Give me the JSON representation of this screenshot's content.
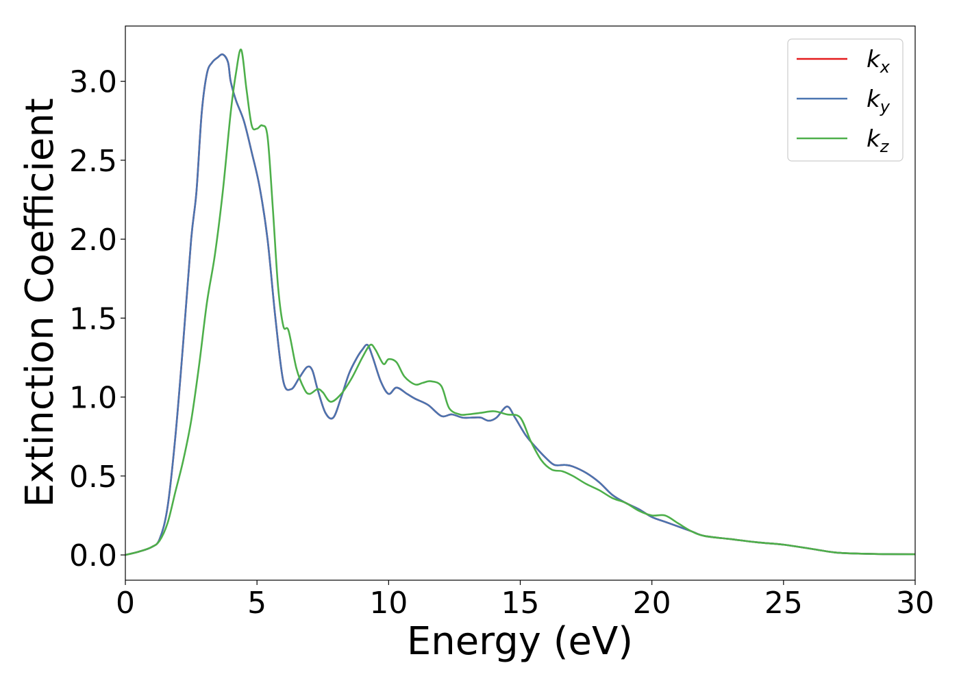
{
  "chart_data": {
    "type": "line",
    "title": "",
    "xlabel": "Energy (eV)",
    "ylabel": "Extinction Coefficient",
    "xlim": [
      0,
      30
    ],
    "ylim": [
      -0.16,
      3.35
    ],
    "xticks": [
      0,
      5,
      10,
      15,
      20,
      25,
      30
    ],
    "xtick_labels": [
      "0",
      "5",
      "10",
      "15",
      "20",
      "25",
      "30"
    ],
    "yticks": [
      0.0,
      0.5,
      1.0,
      1.5,
      2.0,
      2.5,
      3.0
    ],
    "ytick_labels": [
      "0.0",
      "0.5",
      "1.0",
      "1.5",
      "2.0",
      "2.5",
      "3.0"
    ],
    "grid": false,
    "legend_position": "top-right",
    "series": [
      {
        "name": "k",
        "subscript": "x",
        "color": "#e41a1c",
        "x": [
          0,
          0.5,
          1.0,
          1.3,
          1.6,
          1.9,
          2.2,
          2.5,
          2.7,
          2.9,
          3.1,
          3.3,
          3.5,
          3.7,
          3.9,
          4.0,
          4.2,
          4.5,
          4.8,
          5.1,
          5.4,
          5.7,
          6.0,
          6.3,
          6.6,
          6.9,
          7.1,
          7.3,
          7.6,
          7.9,
          8.2,
          8.5,
          8.8,
          9.0,
          9.2,
          9.4,
          9.7,
          10.0,
          10.3,
          10.7,
          11.0,
          11.5,
          12.0,
          12.4,
          12.8,
          13.2,
          13.5,
          13.8,
          14.1,
          14.5,
          14.8,
          15.2,
          15.6,
          16.0,
          16.3,
          16.7,
          17.0,
          17.5,
          18.0,
          18.5,
          19.0,
          19.5,
          20.0,
          20.5,
          21.0,
          21.5,
          22.0,
          23.0,
          24.0,
          25.0,
          26.0,
          27.0,
          28.0,
          29.0,
          30.0
        ],
        "values": [
          0.0,
          0.02,
          0.05,
          0.1,
          0.3,
          0.75,
          1.35,
          2.0,
          2.3,
          2.8,
          3.05,
          3.12,
          3.15,
          3.17,
          3.12,
          3.0,
          2.88,
          2.75,
          2.55,
          2.33,
          2.0,
          1.5,
          1.1,
          1.05,
          1.12,
          1.19,
          1.17,
          1.05,
          0.9,
          0.87,
          1.0,
          1.15,
          1.25,
          1.3,
          1.33,
          1.25,
          1.1,
          1.02,
          1.06,
          1.02,
          0.99,
          0.95,
          0.88,
          0.89,
          0.87,
          0.87,
          0.87,
          0.85,
          0.87,
          0.94,
          0.87,
          0.76,
          0.68,
          0.61,
          0.57,
          0.57,
          0.56,
          0.52,
          0.46,
          0.38,
          0.33,
          0.29,
          0.24,
          0.21,
          0.18,
          0.15,
          0.12,
          0.1,
          0.08,
          0.065,
          0.04,
          0.015,
          0.008,
          0.005,
          0.004
        ]
      },
      {
        "name": "k",
        "subscript": "y",
        "color": "#4a74b0",
        "x": [
          0,
          0.5,
          1.0,
          1.3,
          1.6,
          1.9,
          2.2,
          2.5,
          2.7,
          2.9,
          3.1,
          3.3,
          3.5,
          3.7,
          3.9,
          4.0,
          4.2,
          4.5,
          4.8,
          5.1,
          5.4,
          5.7,
          6.0,
          6.3,
          6.6,
          6.9,
          7.1,
          7.3,
          7.6,
          7.9,
          8.2,
          8.5,
          8.8,
          9.0,
          9.2,
          9.4,
          9.7,
          10.0,
          10.3,
          10.7,
          11.0,
          11.5,
          12.0,
          12.4,
          12.8,
          13.2,
          13.5,
          13.8,
          14.1,
          14.5,
          14.8,
          15.2,
          15.6,
          16.0,
          16.3,
          16.7,
          17.0,
          17.5,
          18.0,
          18.5,
          19.0,
          19.5,
          20.0,
          20.5,
          21.0,
          21.5,
          22.0,
          23.0,
          24.0,
          25.0,
          26.0,
          27.0,
          28.0,
          29.0,
          30.0
        ],
        "values": [
          0.0,
          0.02,
          0.05,
          0.1,
          0.3,
          0.75,
          1.35,
          2.0,
          2.3,
          2.8,
          3.05,
          3.12,
          3.15,
          3.17,
          3.12,
          3.0,
          2.88,
          2.75,
          2.55,
          2.33,
          2.0,
          1.5,
          1.1,
          1.05,
          1.12,
          1.19,
          1.17,
          1.05,
          0.9,
          0.87,
          1.0,
          1.15,
          1.25,
          1.3,
          1.33,
          1.25,
          1.1,
          1.02,
          1.06,
          1.02,
          0.99,
          0.95,
          0.88,
          0.89,
          0.87,
          0.87,
          0.87,
          0.85,
          0.87,
          0.94,
          0.87,
          0.76,
          0.68,
          0.61,
          0.57,
          0.57,
          0.56,
          0.52,
          0.46,
          0.38,
          0.33,
          0.29,
          0.24,
          0.21,
          0.18,
          0.15,
          0.12,
          0.1,
          0.08,
          0.065,
          0.04,
          0.015,
          0.008,
          0.005,
          0.004
        ]
      },
      {
        "name": "k",
        "subscript": "z",
        "color": "#4daf4a",
        "x": [
          0,
          0.5,
          1.0,
          1.3,
          1.6,
          1.9,
          2.2,
          2.5,
          2.8,
          3.1,
          3.4,
          3.7,
          4.0,
          4.2,
          4.4,
          4.6,
          4.8,
          5.0,
          5.2,
          5.4,
          5.6,
          5.8,
          6.0,
          6.2,
          6.5,
          6.8,
          7.0,
          7.3,
          7.5,
          7.8,
          8.2,
          8.6,
          9.0,
          9.3,
          9.5,
          9.8,
          10.0,
          10.3,
          10.6,
          11.0,
          11.3,
          11.6,
          12.0,
          12.3,
          12.7,
          13.0,
          13.5,
          14.0,
          14.5,
          15.0,
          15.4,
          15.8,
          16.2,
          16.6,
          17.0,
          17.5,
          18.0,
          18.5,
          19.0,
          19.5,
          20.0,
          20.5,
          21.0,
          21.5,
          22.0,
          23.0,
          24.0,
          25.0,
          26.0,
          27.0,
          28.0,
          29.0,
          30.0
        ],
        "values": [
          0.0,
          0.02,
          0.05,
          0.09,
          0.2,
          0.4,
          0.6,
          0.85,
          1.2,
          1.6,
          1.9,
          2.3,
          2.8,
          3.05,
          3.2,
          2.95,
          2.72,
          2.7,
          2.72,
          2.65,
          2.2,
          1.7,
          1.45,
          1.42,
          1.18,
          1.05,
          1.02,
          1.05,
          1.03,
          0.97,
          1.02,
          1.12,
          1.25,
          1.33,
          1.3,
          1.21,
          1.24,
          1.22,
          1.13,
          1.08,
          1.09,
          1.1,
          1.07,
          0.93,
          0.89,
          0.89,
          0.9,
          0.91,
          0.89,
          0.87,
          0.72,
          0.6,
          0.54,
          0.53,
          0.5,
          0.45,
          0.41,
          0.36,
          0.33,
          0.28,
          0.25,
          0.25,
          0.2,
          0.15,
          0.12,
          0.1,
          0.08,
          0.065,
          0.04,
          0.015,
          0.008,
          0.005,
          0.004
        ]
      }
    ]
  }
}
